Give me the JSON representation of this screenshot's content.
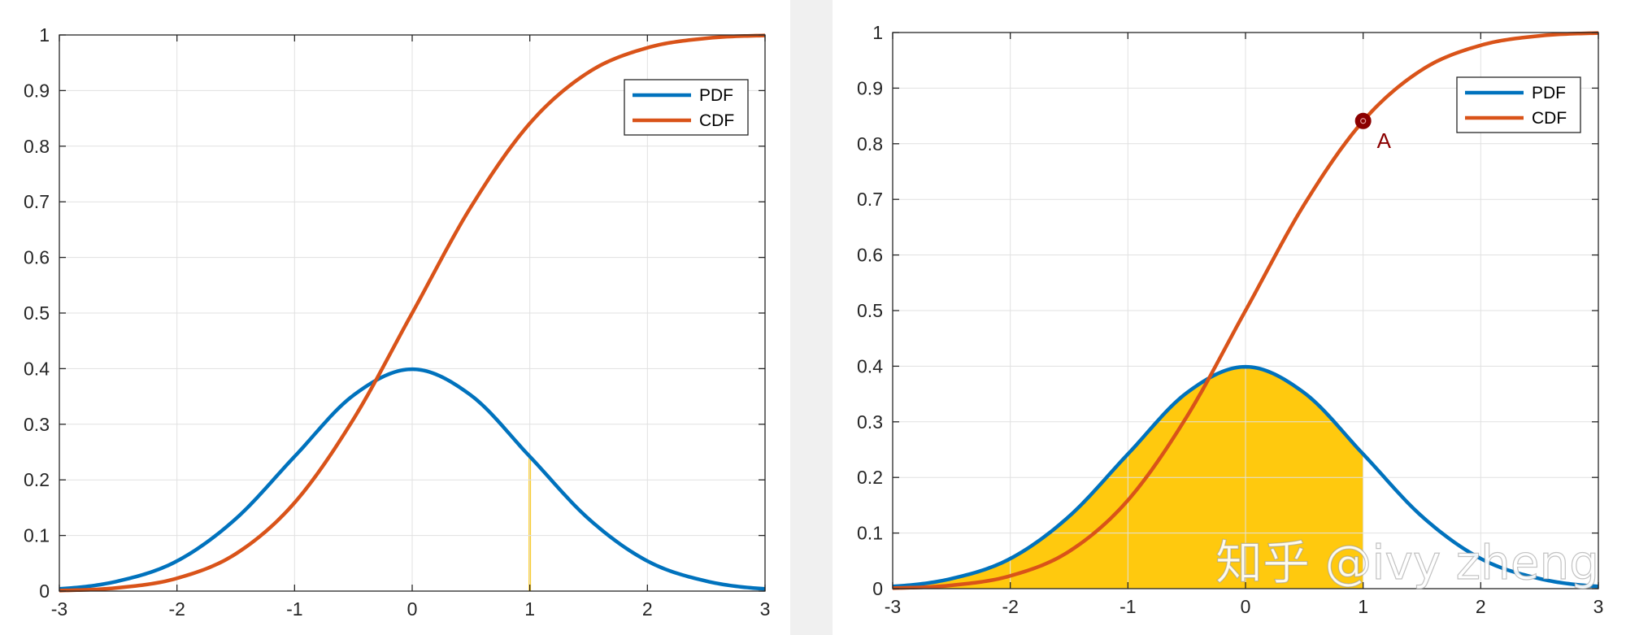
{
  "colors": {
    "pdf": "#0072BD",
    "cdf": "#D95319",
    "fill": "#FFC90E",
    "point": "#8B0000",
    "grid": "#e1e1e1",
    "axis": "#262626"
  },
  "watermark": "知乎 @ivy zheng",
  "chart_data": [
    {
      "type": "line",
      "title": "",
      "xlabel": "",
      "ylabel": "",
      "xlim": [
        -3,
        3
      ],
      "ylim": [
        0,
        1
      ],
      "grid": true,
      "legend_position": "top-right",
      "x_ticks": [
        "-3",
        "-2",
        "-1",
        "0",
        "1",
        "2",
        "3"
      ],
      "y_ticks": [
        "0",
        "0.1",
        "0.2",
        "0.3",
        "0.4",
        "0.5",
        "0.6",
        "0.7",
        "0.8",
        "0.9",
        "1"
      ],
      "x": [
        -3,
        -2.5,
        -2,
        -1.5,
        -1,
        -0.5,
        0,
        0.5,
        1,
        1.5,
        2,
        2.5,
        3
      ],
      "series": [
        {
          "name": "PDF",
          "color": "#0072BD",
          "values": [
            0.004,
            0.018,
            0.054,
            0.13,
            0.242,
            0.352,
            0.399,
            0.352,
            0.242,
            0.13,
            0.054,
            0.018,
            0.004
          ]
        },
        {
          "name": "CDF",
          "color": "#D95319",
          "values": [
            0.001,
            0.006,
            0.023,
            0.067,
            0.159,
            0.309,
            0.5,
            0.691,
            0.841,
            0.933,
            0.977,
            0.994,
            0.999
          ]
        }
      ],
      "shaded_region": {
        "from": 0.99,
        "to": 1.01,
        "under": "PDF",
        "color": "#FFC90E"
      }
    },
    {
      "type": "line",
      "title": "",
      "xlabel": "",
      "ylabel": "",
      "xlim": [
        -3,
        3
      ],
      "ylim": [
        0,
        1
      ],
      "grid": true,
      "legend_position": "top-right",
      "x_ticks": [
        "-3",
        "-2",
        "-1",
        "0",
        "1",
        "2",
        "3"
      ],
      "y_ticks": [
        "0",
        "0.1",
        "0.2",
        "0.3",
        "0.4",
        "0.5",
        "0.6",
        "0.7",
        "0.8",
        "0.9",
        "1"
      ],
      "x": [
        -3,
        -2.5,
        -2,
        -1.5,
        -1,
        -0.5,
        0,
        0.5,
        1,
        1.5,
        2,
        2.5,
        3
      ],
      "series": [
        {
          "name": "PDF",
          "color": "#0072BD",
          "values": [
            0.004,
            0.018,
            0.054,
            0.13,
            0.242,
            0.352,
            0.399,
            0.352,
            0.242,
            0.13,
            0.054,
            0.018,
            0.004
          ]
        },
        {
          "name": "CDF",
          "color": "#D95319",
          "values": [
            0.001,
            0.006,
            0.023,
            0.067,
            0.159,
            0.309,
            0.5,
            0.691,
            0.841,
            0.933,
            0.977,
            0.994,
            0.999
          ]
        }
      ],
      "shaded_region": {
        "from": -3,
        "to": 1,
        "under": "PDF",
        "color": "#FFC90E"
      },
      "annotations": [
        {
          "label": "A",
          "x": 1,
          "y": 0.841,
          "color": "#8B0000"
        }
      ]
    }
  ]
}
